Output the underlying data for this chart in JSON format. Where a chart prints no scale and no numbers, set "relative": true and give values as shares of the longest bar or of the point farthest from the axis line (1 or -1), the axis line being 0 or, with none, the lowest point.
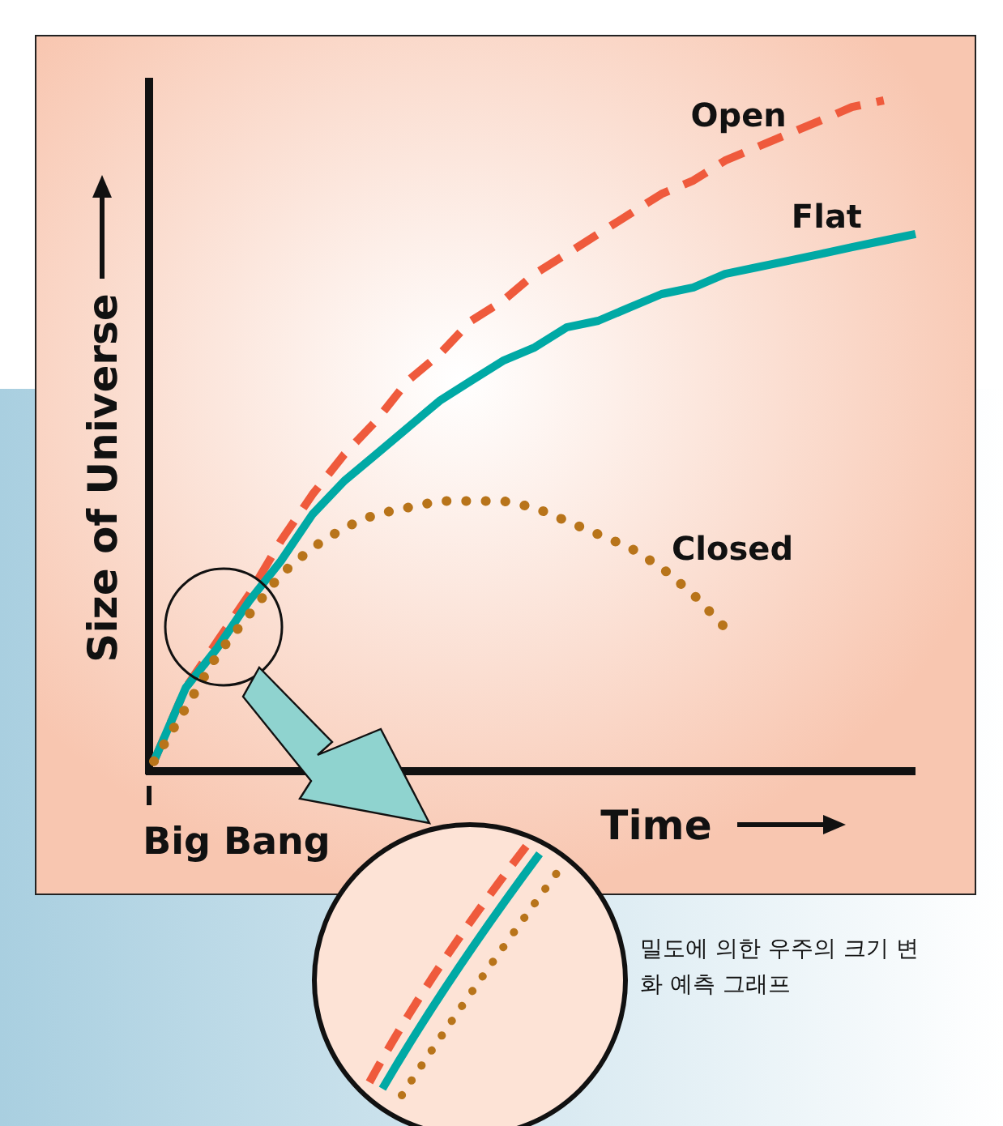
{
  "chart_data": {
    "type": "line",
    "relative": true,
    "xlabel": "Time",
    "ylabel": "Size of Universe",
    "categories": [
      null,
      null,
      null,
      null,
      null,
      null,
      null,
      null,
      null,
      null,
      null,
      null,
      null,
      null,
      null,
      null,
      null,
      null,
      null,
      null,
      null,
      null,
      null,
      null,
      null
    ],
    "series": [
      {
        "name": "Open",
        "color": "#ef5a3c",
        "line_style": "dashed",
        "values": [
          0.01,
          0.12,
          0.19,
          0.26,
          0.34,
          0.41,
          0.47,
          0.52,
          0.58,
          0.62,
          0.67,
          0.7,
          0.74,
          0.77,
          0.8,
          0.83,
          0.86,
          0.88,
          0.91,
          0.93,
          0.95,
          0.97,
          0.99,
          1.0,
          null
        ]
      },
      {
        "name": "Flat",
        "color": "#00a9a5",
        "line_style": "solid",
        "values": [
          0.01,
          0.12,
          0.18,
          0.25,
          0.31,
          0.38,
          0.43,
          0.47,
          0.51,
          0.55,
          0.58,
          0.61,
          0.63,
          0.66,
          0.67,
          0.69,
          0.71,
          0.72,
          0.74,
          0.75,
          0.76,
          0.77,
          0.78,
          0.79,
          0.8
        ]
      },
      {
        "name": "Closed",
        "color": "#b8741a",
        "line_style": "dotted",
        "values": [
          0.01,
          0.09,
          0.17,
          0.23,
          0.29,
          0.33,
          0.36,
          0.38,
          0.39,
          0.4,
          0.4,
          0.4,
          0.39,
          0.37,
          0.35,
          0.33,
          0.3,
          0.26,
          0.21,
          null,
          null,
          null,
          null,
          null,
          null
        ]
      }
    ],
    "annotations": [
      "Big Bang",
      "밀도에 의한 우주의 크기 변화 예측 그래프"
    ],
    "grid": false
  }
}
